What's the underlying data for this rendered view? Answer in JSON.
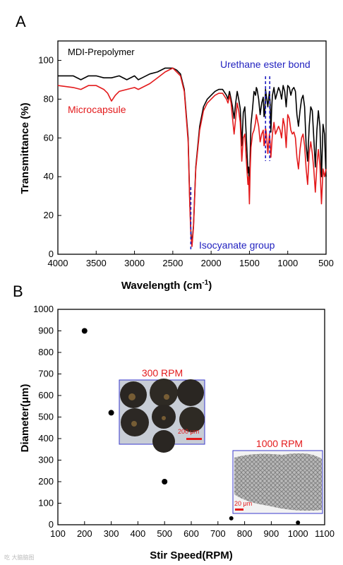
{
  "panels": {
    "a": "A",
    "b": "B"
  },
  "chart_data": [
    {
      "type": "line",
      "xlabel": "Wavelength (cm",
      "xlabel_sup": "-1",
      "xlabel_tail": ")",
      "ylabel": "Transmittance (%)",
      "xlim": [
        4000,
        500
      ],
      "ylim": [
        0,
        110
      ],
      "xticks": [
        "4000",
        "3500",
        "3000",
        "2500",
        "2000",
        "1500",
        "1000",
        "500"
      ],
      "yticks": [
        "0",
        "20",
        "40",
        "60",
        "80",
        "100"
      ],
      "series": [
        {
          "name": "MDI-Prepolymer",
          "color": "#000000",
          "x": [
            4000,
            3800,
            3700,
            3600,
            3500,
            3400,
            3300,
            3200,
            3100,
            3000,
            2950,
            2900,
            2800,
            2700,
            2600,
            2500,
            2450,
            2400,
            2350,
            2300,
            2280,
            2265,
            2250,
            2230,
            2200,
            2150,
            2100,
            2050,
            2000,
            1950,
            1900,
            1850,
            1800,
            1780,
            1760,
            1740,
            1720,
            1700,
            1680,
            1660,
            1640,
            1620,
            1600,
            1580,
            1560,
            1540,
            1520,
            1510,
            1500,
            1490,
            1480,
            1460,
            1440,
            1420,
            1410,
            1400,
            1380,
            1360,
            1340,
            1320,
            1310,
            1300,
            1290,
            1280,
            1260,
            1240,
            1230,
            1220,
            1210,
            1200,
            1180,
            1160,
            1140,
            1120,
            1100,
            1080,
            1060,
            1040,
            1020,
            1000,
            980,
            960,
            940,
            920,
            900,
            880,
            860,
            840,
            820,
            800,
            780,
            760,
            740,
            720,
            700,
            680,
            660,
            640,
            620,
            600,
            580,
            560,
            540,
            520,
            500
          ],
          "y": [
            92,
            92,
            90,
            92,
            92,
            91,
            91,
            92,
            90,
            92,
            90,
            91,
            93,
            94,
            96,
            96,
            95,
            93,
            85,
            60,
            30,
            12,
            5,
            15,
            45,
            66,
            76,
            80,
            82,
            84,
            85,
            85,
            82,
            80,
            84,
            80,
            76,
            70,
            78,
            84,
            80,
            75,
            56,
            73,
            76,
            60,
            42,
            45,
            32,
            52,
            67,
            75,
            84,
            82,
            86,
            85,
            80,
            72,
            78,
            81,
            71,
            72,
            85,
            82,
            76,
            84,
            78,
            63,
            75,
            82,
            86,
            80,
            83,
            86,
            84,
            80,
            87,
            84,
            76,
            87,
            86,
            82,
            85,
            86,
            84,
            72,
            66,
            74,
            80,
            82,
            76,
            56,
            48,
            66,
            76,
            74,
            60,
            45,
            64,
            74,
            66,
            40,
            67,
            62,
            40
          ]
        },
        {
          "name": "Microcapsule",
          "color": "#e31a1c",
          "x": [
            4000,
            3800,
            3700,
            3600,
            3500,
            3400,
            3350,
            3300,
            3250,
            3200,
            3100,
            3000,
            2950,
            2900,
            2800,
            2700,
            2600,
            2500,
            2450,
            2400,
            2350,
            2300,
            2280,
            2265,
            2250,
            2230,
            2200,
            2150,
            2100,
            2050,
            2000,
            1950,
            1900,
            1850,
            1800,
            1780,
            1760,
            1740,
            1720,
            1700,
            1680,
            1660,
            1640,
            1620,
            1600,
            1580,
            1560,
            1540,
            1520,
            1510,
            1500,
            1490,
            1480,
            1460,
            1440,
            1420,
            1410,
            1400,
            1380,
            1360,
            1340,
            1320,
            1310,
            1300,
            1290,
            1280,
            1260,
            1240,
            1230,
            1220,
            1210,
            1200,
            1180,
            1160,
            1140,
            1120,
            1100,
            1080,
            1060,
            1040,
            1020,
            1000,
            980,
            960,
            940,
            920,
            900,
            880,
            860,
            840,
            820,
            800,
            780,
            760,
            740,
            720,
            700,
            680,
            660,
            640,
            620,
            600,
            580,
            560,
            540,
            520,
            500
          ],
          "y": [
            87,
            86,
            85,
            87,
            87,
            85,
            83,
            79,
            82,
            84,
            85,
            86,
            85,
            86,
            88,
            91,
            94,
            96,
            94,
            92,
            84,
            58,
            28,
            10,
            4,
            14,
            44,
            64,
            74,
            78,
            80,
            82,
            83,
            83,
            80,
            78,
            82,
            78,
            70,
            62,
            70,
            78,
            74,
            68,
            48,
            60,
            62,
            48,
            36,
            40,
            26,
            44,
            55,
            62,
            64,
            68,
            72,
            70,
            66,
            58,
            62,
            64,
            56,
            57,
            65,
            63,
            52,
            62,
            58,
            50,
            56,
            62,
            68,
            62,
            64,
            66,
            64,
            60,
            70,
            66,
            55,
            72,
            70,
            64,
            62,
            63,
            60,
            50,
            44,
            54,
            60,
            62,
            56,
            44,
            36,
            52,
            58,
            52,
            44,
            32,
            46,
            54,
            46,
            26,
            44,
            40,
            44
          ]
        }
      ],
      "legend_labels": [
        "MDI-Prepolymer",
        "Microcapsule"
      ],
      "annotations": [
        {
          "text": "Urethane ester bond",
          "color": "#1f1fbf"
        },
        {
          "text": "Isocyanate group",
          "color": "#1f1fbf"
        }
      ]
    },
    {
      "type": "scatter",
      "xlabel": "Stir Speed(RPM)",
      "ylabel": "Diameter(μm)",
      "xlim": [
        100,
        1100
      ],
      "ylim": [
        0,
        1000
      ],
      "xticks": [
        "100",
        "200",
        "300",
        "400",
        "500",
        "600",
        "700",
        "800",
        "900",
        "1000",
        "1100"
      ],
      "yticks": [
        "0",
        "100",
        "200",
        "300",
        "400",
        "500",
        "600",
        "700",
        "800",
        "900",
        "1000"
      ],
      "series": [
        {
          "x": [
            200,
            300,
            500,
            750,
            1000
          ],
          "y": [
            900,
            520,
            200,
            30,
            10
          ]
        }
      ],
      "insets": [
        {
          "title": "300 RPM",
          "scale": "200 μm"
        },
        {
          "title": "1000 RPM",
          "scale": "20 μm"
        }
      ]
    }
  ],
  "watermark": "吃 大脑脑图"
}
